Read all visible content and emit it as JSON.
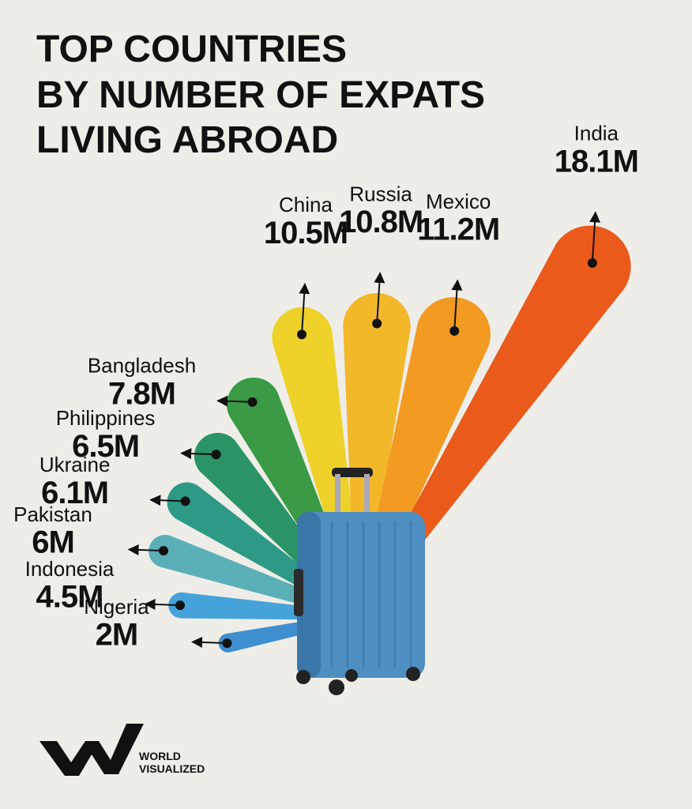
{
  "chart_data": {
    "type": "fan",
    "title_lines": [
      "TOP COUNTRIES",
      "BY NUMBER OF EXPATS",
      "LIVING ABROAD"
    ],
    "categories": [
      "Nigeria",
      "Indonesia",
      "Pakistan",
      "Ukraine",
      "Philippines",
      "Bangladesh",
      "China",
      "Russia",
      "Mexico",
      "India"
    ],
    "values": [
      2,
      4.5,
      6,
      6.1,
      6.5,
      7.8,
      10.5,
      10.8,
      11.2,
      18.1
    ],
    "value_labels": [
      "2M",
      "4.5M",
      "6M",
      "6.1M",
      "6.5M",
      "7.8M",
      "10.5M",
      "10.8M",
      "11.2M",
      "18.1M"
    ],
    "colors": [
      "#3f8fd0",
      "#45a3d9",
      "#5bb0b8",
      "#2e9a86",
      "#2a9466",
      "#3a9a45",
      "#eed22a",
      "#f3b72a",
      "#f39a22",
      "#ea5a1a"
    ],
    "brand_lines": [
      "WORLD",
      "VISUALIZED"
    ]
  }
}
